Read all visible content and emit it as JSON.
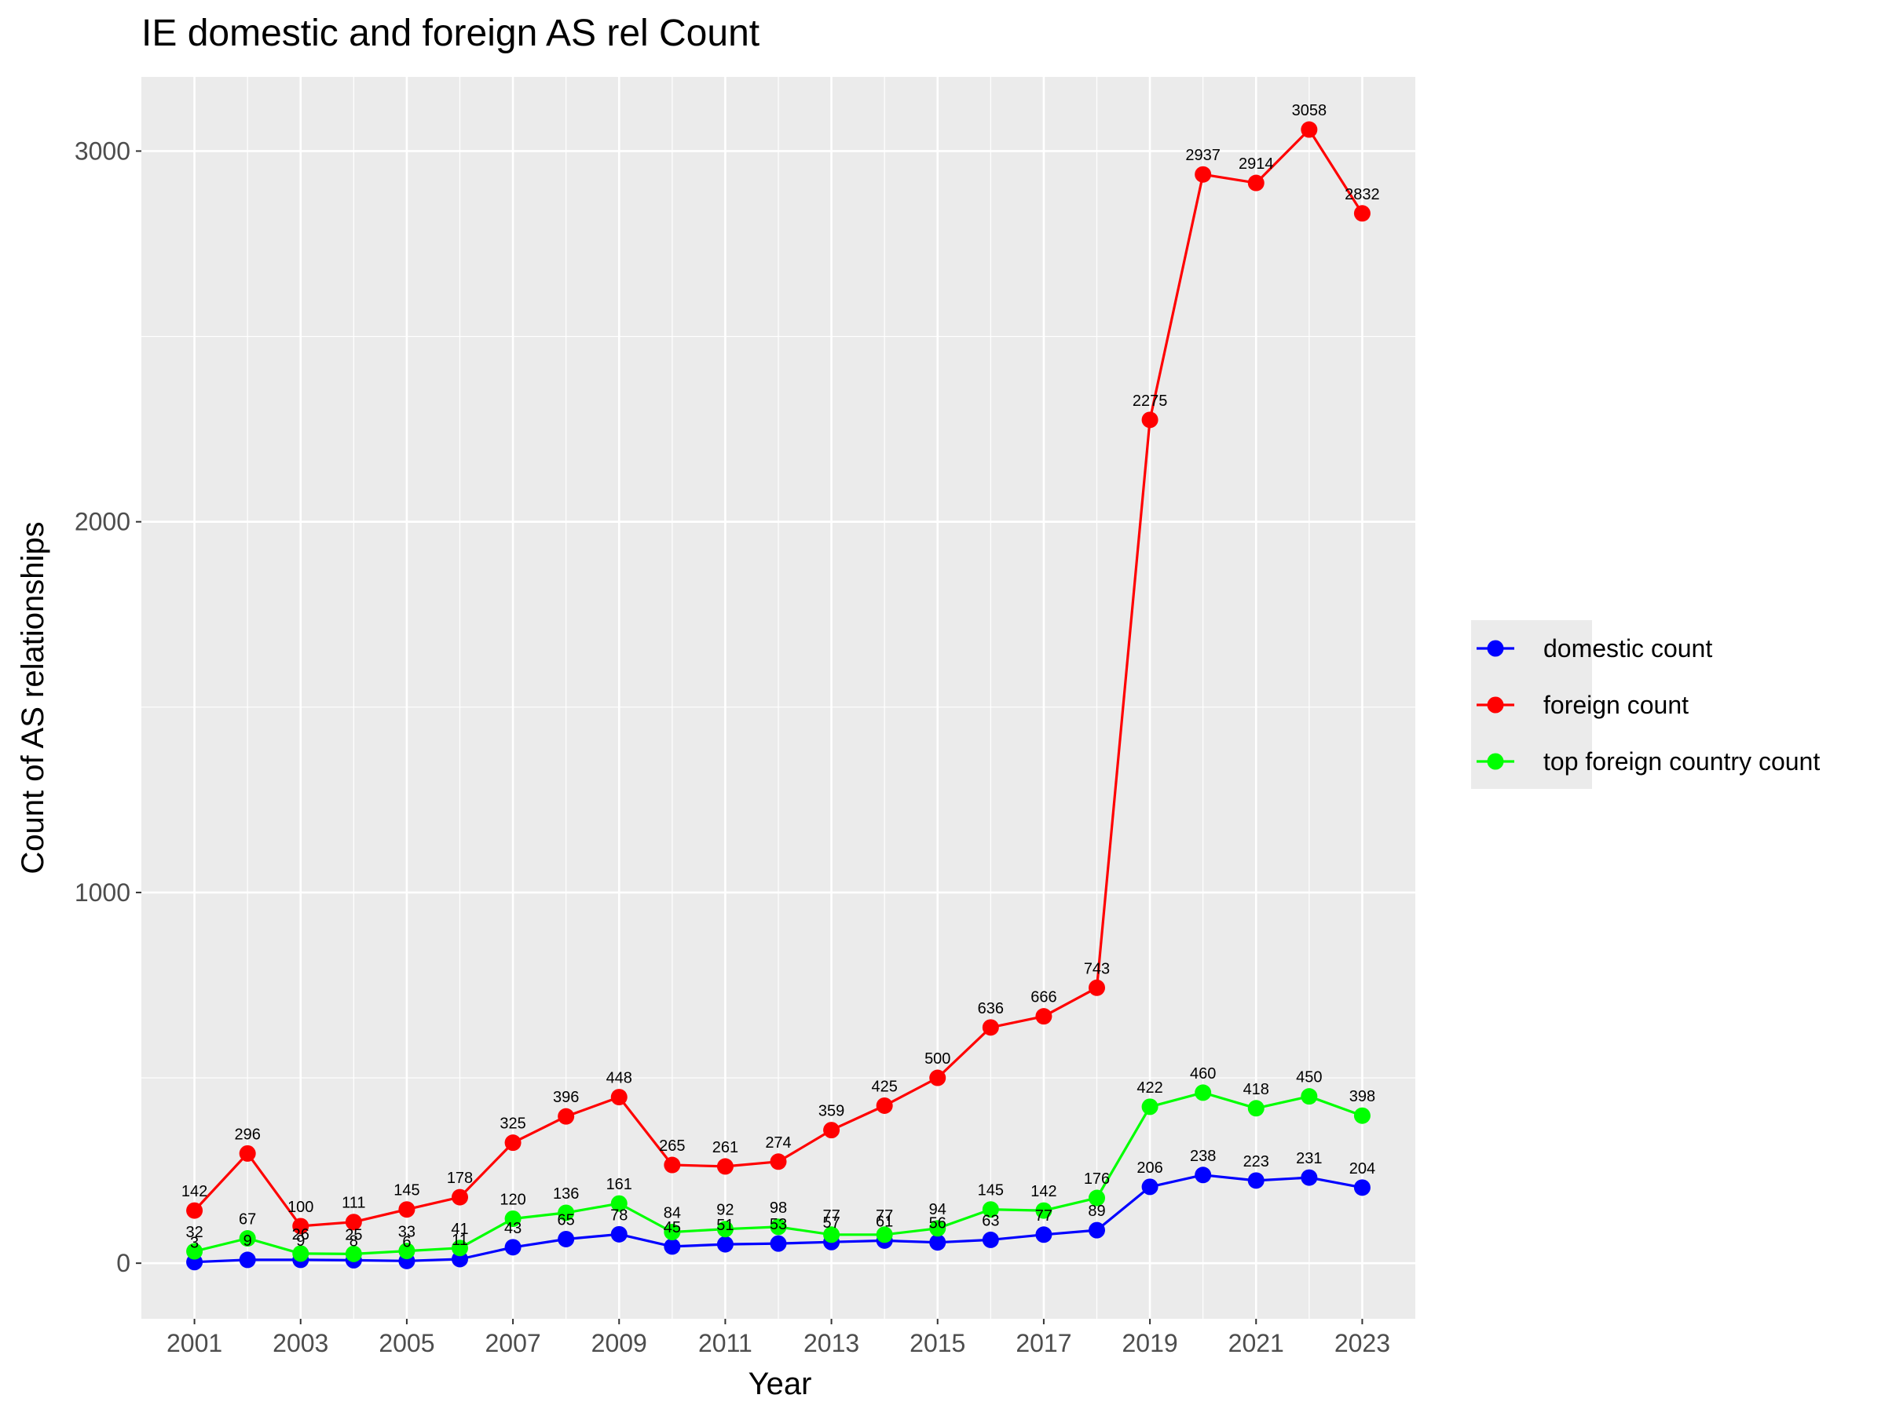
{
  "chart_data": {
    "type": "line",
    "title": "IE domestic and foreign AS rel Count",
    "xlabel": "Year",
    "ylabel": "Count of AS relationships",
    "x": [
      2001,
      2002,
      2003,
      2004,
      2005,
      2006,
      2007,
      2008,
      2009,
      2010,
      2011,
      2012,
      2013,
      2014,
      2015,
      2016,
      2017,
      2018,
      2019,
      2020,
      2021,
      2022,
      2023
    ],
    "x_ticks": [
      "2001",
      "2003",
      "2005",
      "2007",
      "2009",
      "2011",
      "2013",
      "2015",
      "2017",
      "2019",
      "2021",
      "2023"
    ],
    "x_tick_values": [
      2001,
      2003,
      2005,
      2007,
      2009,
      2011,
      2013,
      2015,
      2017,
      2019,
      2021,
      2023
    ],
    "y_ticks": [
      "0",
      "1000",
      "2000",
      "3000"
    ],
    "y_tick_values": [
      0,
      1000,
      2000,
      3000
    ],
    "xlim": [
      2000,
      2024
    ],
    "ylim": [
      -150,
      3200
    ],
    "grid": true,
    "legend_position": "right",
    "series": [
      {
        "name": "domestic count",
        "color": "#0000ff",
        "values": [
          3,
          9,
          9,
          8,
          6,
          11,
          43,
          65,
          78,
          45,
          51,
          53,
          57,
          61,
          56,
          63,
          77,
          89,
          206,
          238,
          223,
          231,
          204
        ],
        "labels": [
          "3",
          "9",
          "9",
          "8",
          "6",
          "11",
          "43",
          "65",
          "78",
          "45",
          "51",
          "53",
          "57",
          "61",
          "56",
          "63",
          "77",
          "89",
          "206",
          "238",
          "223",
          "231",
          "204"
        ]
      },
      {
        "name": "foreign count",
        "color": "#ff0000",
        "values": [
          142,
          296,
          100,
          111,
          145,
          178,
          325,
          396,
          448,
          265,
          261,
          274,
          359,
          425,
          500,
          636,
          666,
          743,
          2275,
          2937,
          2914,
          3058,
          2832
        ],
        "labels": [
          "142",
          "296",
          "100",
          "111",
          "145",
          "178",
          "325",
          "396",
          "448",
          "265",
          "261",
          "274",
          "359",
          "425",
          "500",
          "636",
          "666",
          "743",
          "2275",
          "2937",
          "2914",
          "3058",
          "2832"
        ]
      },
      {
        "name": "top foreign country count",
        "color": "#00ff00",
        "values": [
          32,
          67,
          26,
          25,
          33,
          41,
          120,
          136,
          161,
          84,
          92,
          98,
          77,
          77,
          94,
          145,
          142,
          176,
          422,
          460,
          418,
          450,
          398
        ],
        "labels": [
          "32",
          "67",
          "26",
          "25",
          "33",
          "41",
          "120",
          "136",
          "161",
          "84",
          "92",
          "98",
          "77",
          "77",
          "94",
          "145",
          "142",
          "176",
          "422",
          "460",
          "418",
          "450",
          "398"
        ]
      }
    ]
  }
}
